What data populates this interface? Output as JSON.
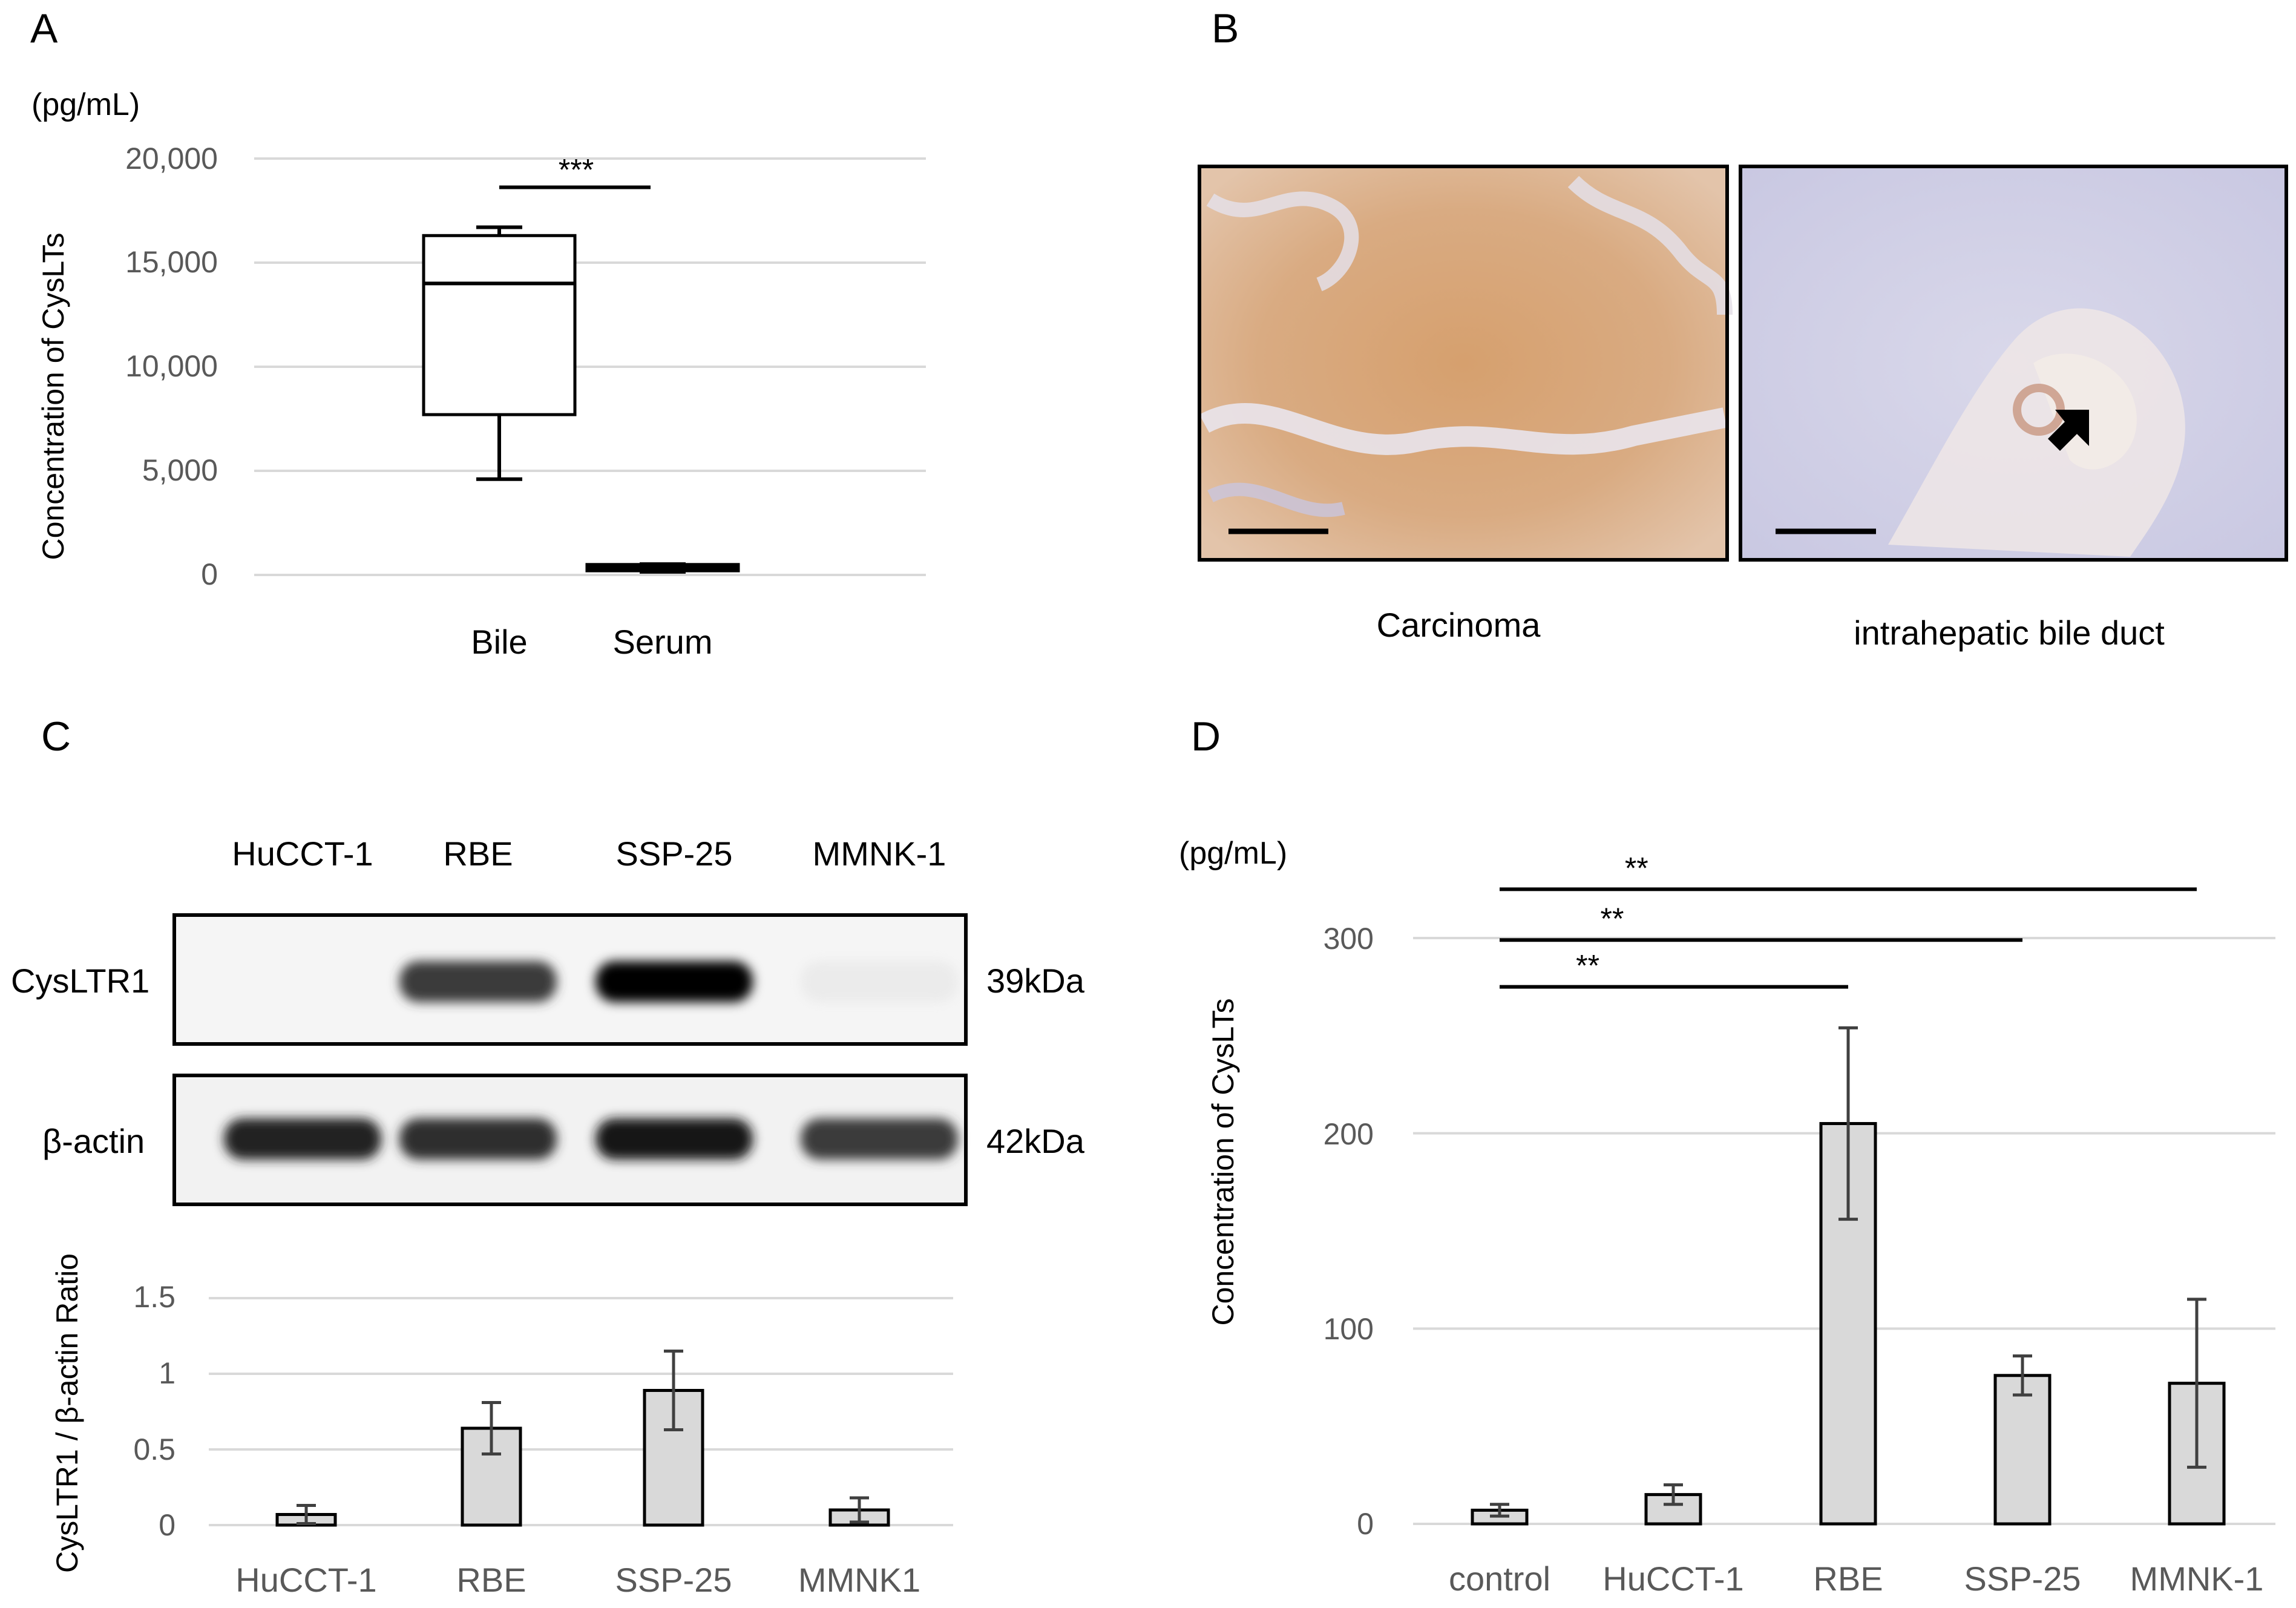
{
  "panels": {
    "a": {
      "letter": "A",
      "unit": "(pg/mL)",
      "ylabel": "Concentration of CysLTs",
      "y_ticks": [
        "20,000",
        "15,000",
        "10,000",
        "5,000",
        "0"
      ],
      "significance": "***"
    },
    "b": {
      "letter": "B",
      "image_left_label": "Carcinoma",
      "image_right_label": "intrahepatic bile duct"
    },
    "c": {
      "letter": "C",
      "blot_lanes": [
        "HuCCT-1",
        "RBE",
        "SSP-25",
        "MMNK-1"
      ],
      "blot_rows": [
        {
          "label": "CysLTR1",
          "size": "39kDa"
        },
        {
          "label": "β-actin",
          "size": "42kDa"
        }
      ],
      "band_intensity": {
        "CysLTR1": [
          0.0,
          0.75,
          1.0,
          0.06
        ],
        "beta_actin": [
          0.85,
          0.8,
          0.9,
          0.75
        ]
      },
      "ylabel": "CysLTR1 / β-actin Ratio",
      "y_ticks": [
        "1.5",
        "1",
        "0.5",
        "0"
      ]
    },
    "d": {
      "letter": "D",
      "unit": "(pg/mL)",
      "ylabel": "Concentration of CysLTs",
      "y_ticks": [
        "300",
        "200",
        "100",
        "0"
      ],
      "significance": [
        "**",
        "**",
        "**"
      ]
    }
  },
  "chart_data": [
    {
      "id": "a",
      "type": "box",
      "categories": [
        "Bile",
        "Serum"
      ],
      "boxes": [
        {
          "category": "Bile",
          "min": 4600,
          "q1": 7700,
          "median": 14000,
          "q3": 16300,
          "max": 16700
        },
        {
          "category": "Serum",
          "min": 150,
          "q1": 200,
          "median": 350,
          "q3": 500,
          "max": 520
        }
      ],
      "ylim": [
        0,
        20000
      ],
      "grid": true,
      "significance": [
        {
          "from": "Bile",
          "to": "Serum",
          "label": "***",
          "y": 19200
        }
      ]
    },
    {
      "id": "c",
      "type": "bar",
      "categories": [
        "HuCCT-1",
        "RBE",
        "SSP-25",
        "MMNK1"
      ],
      "values": [
        0.07,
        0.64,
        0.89,
        0.1
      ],
      "errors": [
        0.06,
        0.17,
        0.26,
        0.08
      ],
      "ylim": [
        0,
        1.5
      ],
      "grid": true
    },
    {
      "id": "d",
      "type": "bar",
      "categories": [
        "control",
        "HuCCT-1",
        "RBE",
        "SSP-25",
        "MMNK-1"
      ],
      "values": [
        7,
        15,
        205,
        76,
        72
      ],
      "errors": [
        3,
        5,
        49,
        10,
        43
      ],
      "ylim": [
        0,
        300
      ],
      "grid": true,
      "significance": [
        {
          "from": "control",
          "to": "RBE",
          "label": "**",
          "y": 275
        },
        {
          "from": "control",
          "to": "SSP-25",
          "label": "**",
          "y": 299
        },
        {
          "from": "control",
          "to": "MMNK-1",
          "label": "**",
          "y": 325
        }
      ]
    }
  ]
}
